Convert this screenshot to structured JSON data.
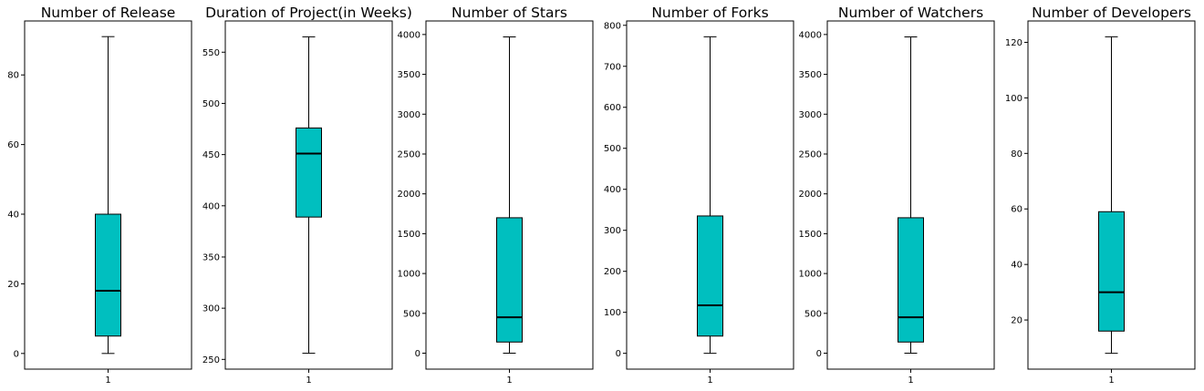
{
  "chart_data": [
    {
      "type": "box",
      "title": "Number of Release",
      "categories": [
        "1"
      ],
      "box": {
        "min": 0,
        "q1": 5,
        "median": 18,
        "q3": 40,
        "max": 91
      },
      "ylim": [
        -4.5,
        95.5
      ],
      "yticks": [
        0,
        20,
        40,
        60,
        80
      ],
      "ytick_labels": [
        "0",
        "20",
        "40",
        "60",
        "80"
      ]
    },
    {
      "type": "box",
      "title": "Duration of Project(in Weeks)",
      "categories": [
        "1"
      ],
      "box": {
        "min": 256,
        "q1": 389,
        "median": 451,
        "q3": 476,
        "max": 565
      },
      "ylim": [
        240.5,
        580.5
      ],
      "yticks": [
        250,
        300,
        350,
        400,
        450,
        500,
        550
      ],
      "ytick_labels": [
        "250",
        "300",
        "350",
        "400",
        "450",
        "500",
        "550"
      ]
    },
    {
      "type": "box",
      "title": "Number of Stars",
      "categories": [
        "1"
      ],
      "box": {
        "min": 0,
        "q1": 140,
        "median": 450,
        "q3": 1700,
        "max": 3970
      },
      "ylim": [
        -200,
        4170
      ],
      "yticks": [
        0,
        500,
        1000,
        1500,
        2000,
        2500,
        3000,
        3500,
        4000
      ],
      "ytick_labels": [
        "0",
        "500",
        "1000",
        "1500",
        "2000",
        "2500",
        "3000",
        "3500",
        "4000"
      ]
    },
    {
      "type": "box",
      "title": "Number of Forks",
      "categories": [
        "1"
      ],
      "box": {
        "min": 0,
        "q1": 42,
        "median": 117,
        "q3": 335,
        "max": 772
      },
      "ylim": [
        -38.6,
        810.6
      ],
      "yticks": [
        0,
        100,
        200,
        300,
        400,
        500,
        600,
        700,
        800
      ],
      "ytick_labels": [
        "0",
        "100",
        "200",
        "300",
        "400",
        "500",
        "600",
        "700",
        "800"
      ]
    },
    {
      "type": "box",
      "title": "Number of Watchers",
      "categories": [
        "1"
      ],
      "box": {
        "min": 0,
        "q1": 140,
        "median": 450,
        "q3": 1700,
        "max": 3970
      },
      "ylim": [
        -200,
        4170
      ],
      "yticks": [
        0,
        500,
        1000,
        1500,
        2000,
        2500,
        3000,
        3500,
        4000
      ],
      "ytick_labels": [
        "0",
        "500",
        "1000",
        "1500",
        "2000",
        "2500",
        "3000",
        "3500",
        "4000"
      ]
    },
    {
      "type": "box",
      "title": "Number of Developers",
      "categories": [
        "1"
      ],
      "box": {
        "min": 8,
        "q1": 16,
        "median": 30,
        "q3": 59,
        "max": 122
      },
      "ylim": [
        2.3,
        127.7
      ],
      "yticks": [
        20,
        40,
        60,
        80,
        100,
        120
      ],
      "ytick_labels": [
        "20",
        "40",
        "60",
        "80",
        "100",
        "120"
      ]
    }
  ],
  "colors": {
    "box_fill": "#00bfbf",
    "box_edge": "#000000",
    "median": "#000000",
    "axes": "#000000"
  }
}
